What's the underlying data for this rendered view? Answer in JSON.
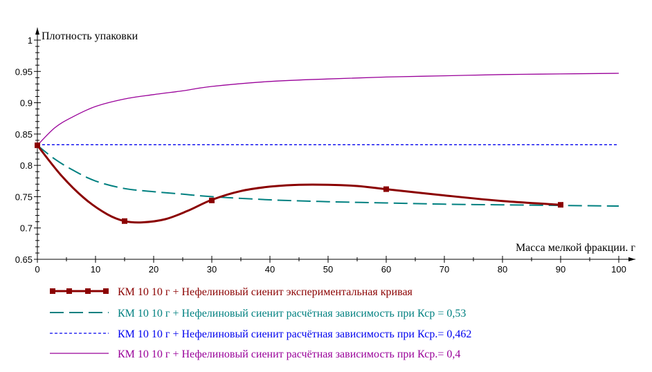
{
  "chart_data": {
    "type": "line",
    "xlabel": "Масса мелкой фракции. г",
    "ylabel": "Плотность упаковки",
    "xlim": [
      0,
      100
    ],
    "ylim": [
      0.65,
      1
    ],
    "xticks": [
      0,
      10,
      20,
      30,
      40,
      50,
      60,
      70,
      80,
      90,
      100
    ],
    "xtick_labels": [
      "0",
      "10",
      "20",
      "30",
      "40",
      "50",
      "60",
      "70",
      "80",
      "90",
      "100"
    ],
    "yticks": [
      0.65,
      0.7,
      0.75,
      0.8,
      0.85,
      0.9,
      0.95,
      1
    ],
    "ytick_labels": [
      "0.65",
      "0.7",
      "0.75",
      "0.8",
      "0.85",
      "0.9",
      "0.95",
      "1"
    ],
    "grid": false,
    "legend_position": "bottom",
    "series": [
      {
        "name": "КМ 10 10 г + Нефелиновый сиенит экспериментальная кривая",
        "color": "#8b0000",
        "style": "solid-markers",
        "x": [
          0,
          4,
          8,
          12,
          15,
          18,
          22,
          26,
          30,
          35,
          40,
          45,
          50,
          55,
          60,
          70,
          80,
          90
        ],
        "y": [
          0.832,
          0.785,
          0.748,
          0.722,
          0.711,
          0.709,
          0.714,
          0.728,
          0.745,
          0.759,
          0.766,
          0.769,
          0.769,
          0.767,
          0.762,
          0.752,
          0.743,
          0.737
        ],
        "markers": [
          [
            0,
            0.832
          ],
          [
            15,
            0.711
          ],
          [
            30,
            0.744
          ],
          [
            60,
            0.762
          ],
          [
            90,
            0.737
          ]
        ]
      },
      {
        "name": "КМ 10 10 г + Нефелиновый сиенит расчётная зависимость при Кср = 0,53",
        "color": "#008080",
        "style": "dashed",
        "x": [
          0,
          3,
          6,
          10,
          15,
          20,
          25,
          30,
          40,
          50,
          60,
          70,
          80,
          90,
          100
        ],
        "y": [
          0.832,
          0.81,
          0.793,
          0.775,
          0.763,
          0.758,
          0.754,
          0.75,
          0.745,
          0.742,
          0.74,
          0.738,
          0.737,
          0.736,
          0.735
        ]
      },
      {
        "name": "КМ 10 10 г + Нефелиновый сиенит расчётная зависимость при Кср.= 0,462",
        "color": "#0000ee",
        "style": "dotted",
        "x": [
          0,
          100
        ],
        "y": [
          0.833,
          0.833
        ]
      },
      {
        "name": "КМ 10 10 г + Нефелиновый сиенит расчётная зависимость при Кср.= 0,4",
        "color": "#990099",
        "style": "solid-thin",
        "x": [
          0,
          3,
          6,
          10,
          15,
          20,
          25,
          30,
          40,
          50,
          60,
          70,
          80,
          90,
          100
        ],
        "y": [
          0.832,
          0.86,
          0.877,
          0.894,
          0.906,
          0.913,
          0.919,
          0.926,
          0.934,
          0.938,
          0.941,
          0.943,
          0.945,
          0.946,
          0.947
        ]
      }
    ]
  }
}
